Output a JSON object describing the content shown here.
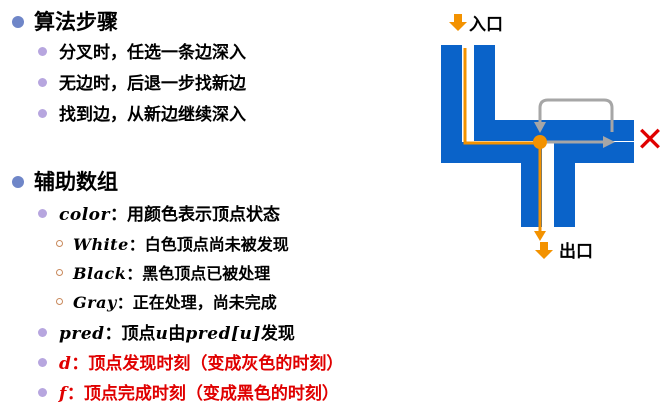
{
  "sections": [
    {
      "title": "算法步骤",
      "items": [
        "分叉时，任选一条边深入",
        "无边时，后退一步找新边",
        "找到边，从新边继续深入"
      ]
    },
    {
      "title": "辅助数组",
      "color_item": {
        "term": "color",
        "text": "：用颜色表示顶点状态"
      },
      "states": [
        {
          "term": "White",
          "text": "：白色顶点尚未被发现"
        },
        {
          "term": "Black",
          "text": "：黑色顶点已被处理"
        },
        {
          "term": "Gray",
          "text": "：正在处理，尚未完成"
        }
      ],
      "pred_item": {
        "term1": "pred",
        "text1": "：顶点",
        "term2": "u",
        "text2": "由",
        "term3": "pred[u]",
        "text3": "发现"
      },
      "d_item": {
        "term": "d",
        "text": "：顶点发现时刻（变成灰色的时刻）"
      },
      "f_item": {
        "term": "f",
        "text": "：顶点完成时刻（变成黑色的时刻）"
      }
    }
  ],
  "diagram": {
    "entrance_label": "入口",
    "exit_label": "出口",
    "dead_end_mark": "✕",
    "colors": {
      "wall": "#0a63c9",
      "path": "#f39200",
      "backtrack": "#a6a6a6",
      "mark": "#e00000"
    }
  }
}
